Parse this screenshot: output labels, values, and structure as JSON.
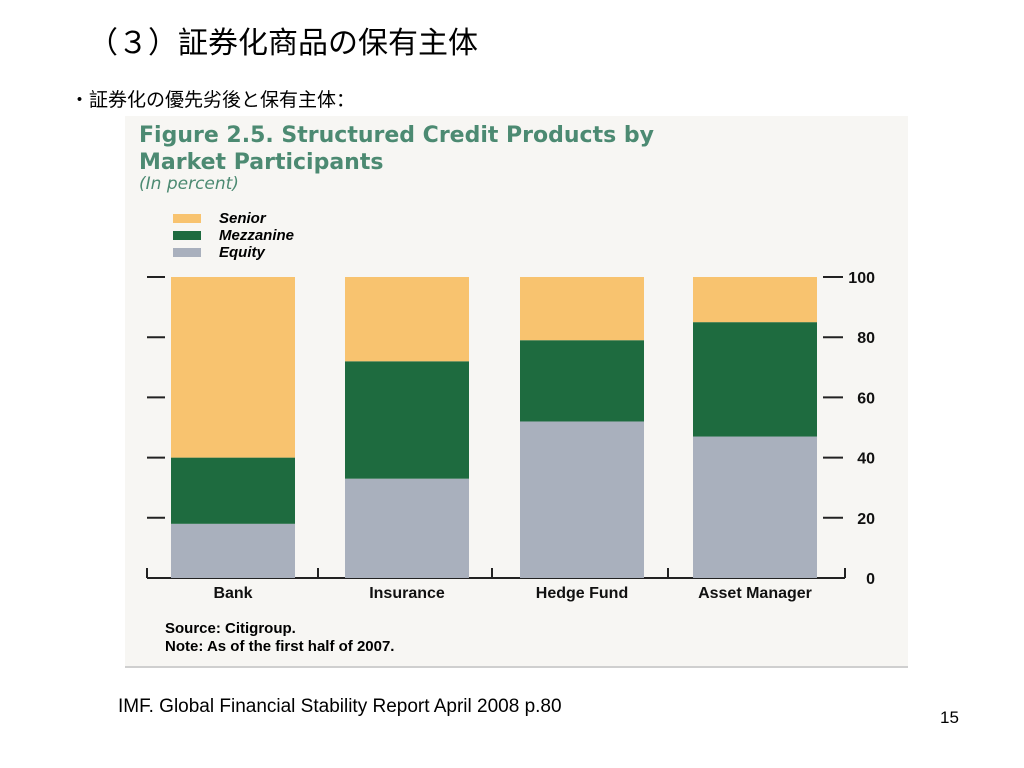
{
  "slide": {
    "title": "（３）証券化商品の保有主体",
    "bullet": "・証券化の優先劣後と保有主体：",
    "citation": "IMF. Global Financial Stability Report  April 2008 p.80",
    "page_number": "15"
  },
  "figure": {
    "title_line1": "Figure 2.5. Structured Credit Products by",
    "title_line2": "Market Participants",
    "subtitle": "(In percent)",
    "source": "Source: Citigroup.",
    "note": "Note: As of the first half of 2007."
  },
  "chart_data": {
    "type": "bar",
    "stacked": true,
    "title": "Figure 2.5. Structured Credit Products by Market Participants",
    "subtitle": "(In percent)",
    "categories": [
      "Bank",
      "Insurance",
      "Hedge Fund",
      "Asset Manager"
    ],
    "series": [
      {
        "name": "Senior",
        "color": "#f8c36f",
        "values": [
          60,
          28,
          21,
          15
        ]
      },
      {
        "name": "Mezzanine",
        "color": "#1e6b3f",
        "values": [
          22,
          39,
          27,
          38
        ]
      },
      {
        "name": "Equity",
        "color": "#a9b0bd",
        "values": [
          18,
          33,
          52,
          47
        ]
      }
    ],
    "legend_order": [
      "Senior",
      "Mezzanine",
      "Equity"
    ],
    "legend_position": "top-left",
    "ylim": [
      0,
      100
    ],
    "y_ticks": [
      0,
      20,
      40,
      60,
      80,
      100
    ],
    "y_axis_side": "right",
    "xlabel": "",
    "ylabel": ""
  }
}
